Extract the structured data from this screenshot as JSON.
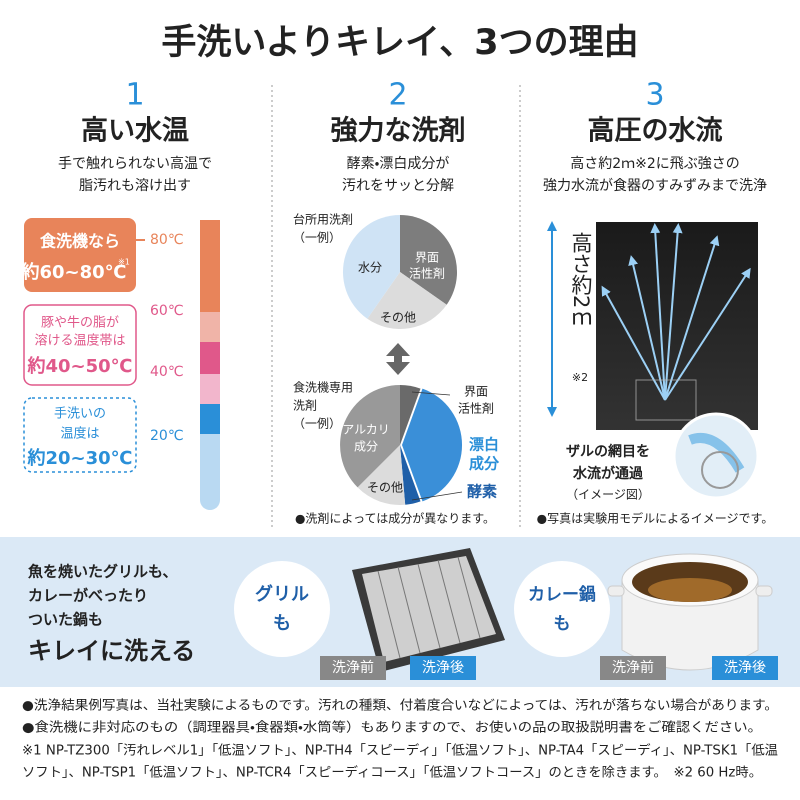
{
  "title": "手洗いよりキレイ、3つの理由",
  "reason1": {
    "number": "1",
    "heading": "高い水温",
    "description": [
      "手で触れられない高温で",
      "脂汚れも溶け出す"
    ],
    "dishwasher": [
      "食洗機なら",
      "約60~80℃",
      "※1"
    ],
    "fat": [
      "豚や牛の脂が",
      "溶ける温度帯は",
      "約40~50℃"
    ],
    "handwash": [
      "手洗いの",
      "温度は",
      "約20~30℃"
    ],
    "scale": [
      "80℃",
      "60℃",
      "40℃",
      "20℃"
    ]
  },
  "reason2": {
    "number": "2",
    "heading": "強力な洗剤",
    "description": [
      "酵素・漂白成分が",
      "汚れをサッと分解"
    ],
    "kitchen_detergent": {
      "label": [
        "台所用洗剤",
        "（一例）"
      ],
      "segments": [
        "水分",
        "界面",
        "活性剤",
        "その他"
      ]
    },
    "dishwasher_detergent": {
      "label": [
        "食洗機専用",
        "洗剤",
        "（一例）"
      ],
      "segments": [
        "アルカリ",
        "成分",
        "その他",
        "界面",
        "活性剤",
        "漂白",
        "成分",
        "酵素"
      ]
    },
    "note": "●洗剤によっては成分が異なります。"
  },
  "reason3": {
    "number": "3",
    "heading": "高圧の水流",
    "description": [
      "高さ約2ｍ※2に飛ぶ強さの",
      "強力水流が食器のすみずみまで洗浄"
    ],
    "height": "高さ約2ｍ",
    "height_note": "※2",
    "caption": [
      "ザルの網目を",
      "水流が通過",
      "（イメージ図）"
    ],
    "note": "●写真は実験用モデルによるイメージです。"
  },
  "banner": {
    "lines": [
      "魚を焼いたグリルも、",
      "カレーがべったり",
      "ついた鍋も"
    ],
    "headline": "キレイに洗える",
    "grill": [
      "グリル",
      "も"
    ],
    "pot": [
      "カレー鍋",
      "も"
    ],
    "before": "洗浄前",
    "after": "洗浄後"
  },
  "footnotes": [
    "●洗浄結果例写真は、当社実験によるものです。汚れの種類、付着度合いなどによっては、汚れが落ちない場合があります。",
    "●食洗機に非対応のもの（調理器具・食器類・水筒等）もありますので、お使いの品の取扱説明書をご確認ください。",
    "※1 NP-TZ300「汚れレベル1」「低温ソフト」、NP-TH4「スピーディ」「低温ソフト」、NP-TA4「スピーディ」、NP-TSK1「低温",
    "ソフト」、NP-TSP1「低温ソフト」、NP-TCR4「スピーディコース」「低温ソフトコース」のときを除きます。　※2 60 Hz時。"
  ]
}
